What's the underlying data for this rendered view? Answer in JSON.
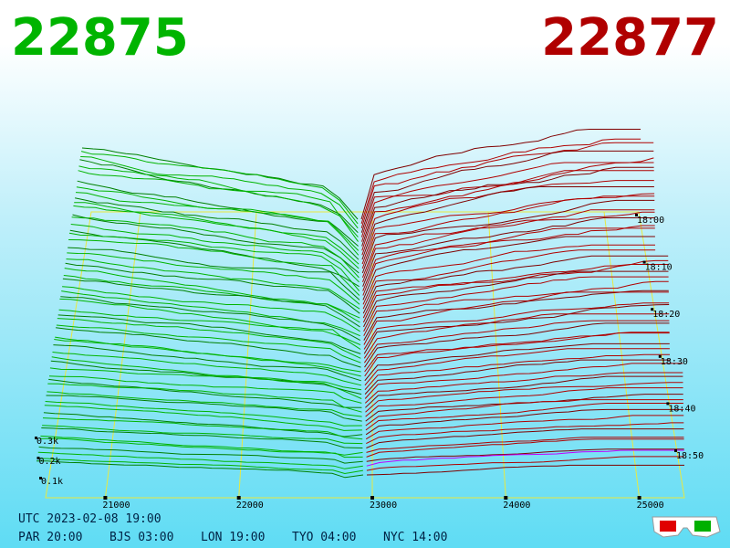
{
  "header": {
    "bid": "22875",
    "ask": "22877"
  },
  "price_ticks": [
    21000,
    22000,
    23000,
    24000,
    25000
  ],
  "time_labels": [
    "18:00",
    "18:10",
    "18:20",
    "18:30",
    "18:40",
    "18:50"
  ],
  "depth_labels": [
    "0.3k",
    "0.2k",
    "0.1k"
  ],
  "footer": {
    "utc": "UTC 2023-02-08 19:00",
    "clocks": [
      "PAR 20:00",
      "BJS 03:00",
      "LON 19:00",
      "TYO 04:00",
      "NYC 14:00"
    ]
  }
}
